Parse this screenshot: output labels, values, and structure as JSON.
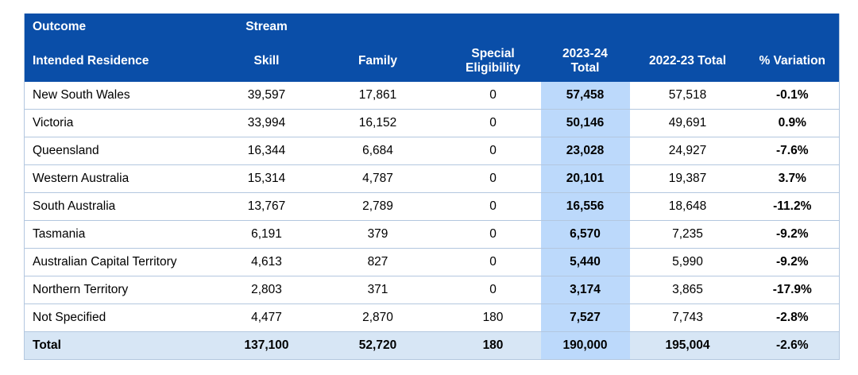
{
  "header": {
    "row1": {
      "outcome": "Outcome",
      "stream": "Stream"
    },
    "row2": {
      "intended_residence": "Intended Residence",
      "skill": "Skill",
      "family": "Family",
      "special_eligibility_line1": "Special",
      "special_eligibility_line2": "Eligibility",
      "total_line1": "2023-24",
      "total_line2": "Total",
      "prev_total": "2022-23 Total",
      "variation": "% Variation"
    }
  },
  "rows": [
    {
      "state": "New South Wales",
      "skill": "39,597",
      "family": "17,861",
      "special": "0",
      "total": "57,458",
      "prev": "57,518",
      "variation": "-0.1%"
    },
    {
      "state": "Victoria",
      "skill": "33,994",
      "family": "16,152",
      "special": "0",
      "total": "50,146",
      "prev": "49,691",
      "variation": "0.9%"
    },
    {
      "state": "Queensland",
      "skill": "16,344",
      "family": "6,684",
      "special": "0",
      "total": "23,028",
      "prev": "24,927",
      "variation": "-7.6%"
    },
    {
      "state": "Western Australia",
      "skill": "15,314",
      "family": "4,787",
      "special": "0",
      "total": "20,101",
      "prev": "19,387",
      "variation": "3.7%"
    },
    {
      "state": "South Australia",
      "skill": "13,767",
      "family": "2,789",
      "special": "0",
      "total": "16,556",
      "prev": "18,648",
      "variation": "-11.2%"
    },
    {
      "state": "Tasmania",
      "skill": "6,191",
      "family": "379",
      "special": "0",
      "total": "6,570",
      "prev": "7,235",
      "variation": "-9.2%"
    },
    {
      "state": "Australian Capital Territory",
      "skill": "4,613",
      "family": "827",
      "special": "0",
      "total": "5,440",
      "prev": "5,990",
      "variation": "-9.2%"
    },
    {
      "state": "Northern Territory",
      "skill": "2,803",
      "family": "371",
      "special": "0",
      "total": "3,174",
      "prev": "3,865",
      "variation": "-17.9%"
    },
    {
      "state": "Not Specified",
      "skill": "4,477",
      "family": "2,870",
      "special": "180",
      "total": "7,527",
      "prev": "7,743",
      "variation": "-2.8%"
    }
  ],
  "total_row": {
    "label": "Total",
    "skill": "137,100",
    "family": "52,720",
    "special": "180",
    "total": "190,000",
    "prev": "195,004",
    "variation": "-2.6%"
  },
  "colors": {
    "header_bg": "#0a4ea8",
    "highlight_col": "#bcd9fb",
    "total_row_bg": "#d7e6f5"
  }
}
